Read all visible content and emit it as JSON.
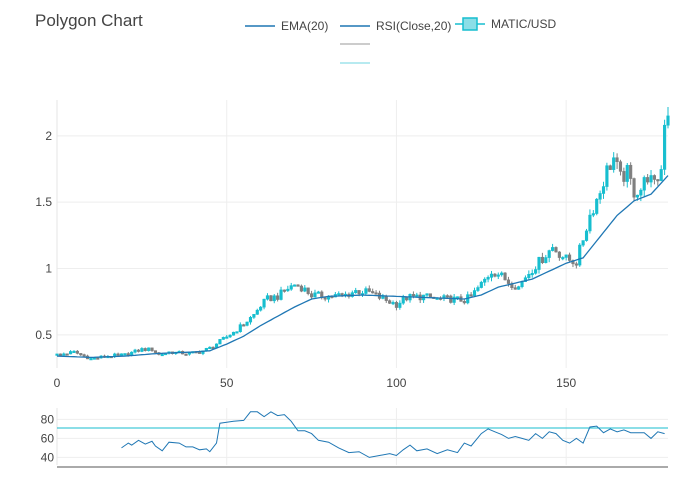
{
  "title": "Polygon Chart",
  "colors": {
    "ema": "#1f77b4",
    "rsi": "#1f77b4",
    "up": "#17becf",
    "down": "#7f7f7f",
    "grid": "#eeeeee",
    "rsi_level": "#17becf"
  },
  "legend": [
    {
      "label": "EMA(20)",
      "kind": "line",
      "color": "#1f77b4"
    },
    {
      "label": "RSI(Close,20)",
      "kind": "line",
      "color": "#1f77b4"
    },
    {
      "label": "MATIC/USD",
      "kind": "candle",
      "color": "#17becf"
    },
    {
      "label": "",
      "kind": "line",
      "color": "#7f7f7f"
    },
    {
      "label": "",
      "kind": "line",
      "color": "#17becf"
    }
  ],
  "chart_data": {
    "type": "candlestick",
    "xlabel": "",
    "ylabel": "",
    "xlim": [
      0,
      180
    ],
    "ylim": [
      0.25,
      2.27
    ],
    "x_ticks": [
      0,
      50,
      100,
      150
    ],
    "y_ticks": [
      0.5,
      1,
      1.5,
      2
    ],
    "grid": true,
    "legend_position": "top",
    "series": [
      {
        "name": "MATIC/USD",
        "kind": "ohlc"
      },
      {
        "name": "EMA(20)",
        "kind": "line"
      }
    ],
    "candle_anchors": [
      [
        0,
        0.35
      ],
      [
        5,
        0.37
      ],
      [
        8,
        0.34
      ],
      [
        10,
        0.32
      ],
      [
        15,
        0.34
      ],
      [
        20,
        0.35
      ],
      [
        25,
        0.39
      ],
      [
        28,
        0.39
      ],
      [
        30,
        0.35
      ],
      [
        33,
        0.37
      ],
      [
        38,
        0.36
      ],
      [
        42,
        0.37
      ],
      [
        45,
        0.4
      ],
      [
        48,
        0.45
      ],
      [
        52,
        0.52
      ],
      [
        55,
        0.58
      ],
      [
        58,
        0.65
      ],
      [
        60,
        0.72
      ],
      [
        62,
        0.77
      ],
      [
        65,
        0.79
      ],
      [
        68,
        0.85
      ],
      [
        70,
        0.88
      ],
      [
        72,
        0.86
      ],
      [
        75,
        0.8
      ],
      [
        80,
        0.79
      ],
      [
        85,
        0.8
      ],
      [
        88,
        0.83
      ],
      [
        92,
        0.82
      ],
      [
        96,
        0.77
      ],
      [
        100,
        0.73
      ],
      [
        103,
        0.78
      ],
      [
        108,
        0.79
      ],
      [
        112,
        0.77
      ],
      [
        116,
        0.77
      ],
      [
        120,
        0.76
      ],
      [
        122,
        0.79
      ],
      [
        125,
        0.88
      ],
      [
        128,
        0.98
      ],
      [
        130,
        0.96
      ],
      [
        133,
        0.9
      ],
      [
        136,
        0.86
      ],
      [
        138,
        0.94
      ],
      [
        142,
        1.05
      ],
      [
        146,
        1.16
      ],
      [
        150,
        1.07
      ],
      [
        153,
        1.05
      ],
      [
        157,
        1.4
      ],
      [
        160,
        1.58
      ],
      [
        162,
        1.74
      ],
      [
        164,
        1.83
      ],
      [
        166,
        1.68
      ],
      [
        168,
        1.72
      ],
      [
        170,
        1.58
      ],
      [
        172,
        1.6
      ],
      [
        174,
        1.7
      ],
      [
        176,
        1.62
      ],
      [
        178,
        1.75
      ],
      [
        179,
        2.1
      ],
      [
        180,
        2.16
      ]
    ],
    "ema_anchors": [
      [
        0,
        0.34
      ],
      [
        10,
        0.33
      ],
      [
        20,
        0.34
      ],
      [
        30,
        0.36
      ],
      [
        40,
        0.37
      ],
      [
        45,
        0.38
      ],
      [
        50,
        0.43
      ],
      [
        55,
        0.49
      ],
      [
        60,
        0.57
      ],
      [
        65,
        0.64
      ],
      [
        70,
        0.71
      ],
      [
        75,
        0.77
      ],
      [
        80,
        0.79
      ],
      [
        90,
        0.8
      ],
      [
        100,
        0.79
      ],
      [
        110,
        0.78
      ],
      [
        120,
        0.77
      ],
      [
        125,
        0.8
      ],
      [
        130,
        0.86
      ],
      [
        135,
        0.89
      ],
      [
        140,
        0.92
      ],
      [
        145,
        0.98
      ],
      [
        150,
        1.04
      ],
      [
        155,
        1.08
      ],
      [
        160,
        1.24
      ],
      [
        165,
        1.4
      ],
      [
        170,
        1.51
      ],
      [
        175,
        1.56
      ],
      [
        180,
        1.7
      ]
    ],
    "rsi_panel": {
      "name": "RSI(Close,20)",
      "ylim": [
        32,
        92
      ],
      "y_ticks": [
        40,
        60,
        80
      ],
      "level_line": 71,
      "anchors": [
        [
          19,
          50
        ],
        [
          21,
          55
        ],
        [
          22,
          53
        ],
        [
          24,
          58
        ],
        [
          26,
          54
        ],
        [
          28,
          57
        ],
        [
          29,
          52
        ],
        [
          31,
          47
        ],
        [
          33,
          56
        ],
        [
          36,
          55
        ],
        [
          38,
          51
        ],
        [
          40,
          51
        ],
        [
          42,
          48
        ],
        [
          44,
          49
        ],
        [
          45,
          46
        ],
        [
          47,
          55
        ],
        [
          48,
          76
        ],
        [
          50,
          77
        ],
        [
          52,
          78
        ],
        [
          55,
          79
        ],
        [
          57,
          88
        ],
        [
          59,
          88
        ],
        [
          61,
          83
        ],
        [
          63,
          88
        ],
        [
          65,
          84
        ],
        [
          67,
          85
        ],
        [
          69,
          78
        ],
        [
          71,
          68
        ],
        [
          73,
          68
        ],
        [
          75,
          65
        ],
        [
          77,
          58
        ],
        [
          80,
          56
        ],
        [
          83,
          50
        ],
        [
          86,
          45
        ],
        [
          89,
          46
        ],
        [
          92,
          40
        ],
        [
          95,
          42
        ],
        [
          98,
          44
        ],
        [
          100,
          42
        ],
        [
          102,
          48
        ],
        [
          104,
          53
        ],
        [
          106,
          47
        ],
        [
          109,
          49
        ],
        [
          112,
          44
        ],
        [
          115,
          48
        ],
        [
          118,
          45
        ],
        [
          120,
          55
        ],
        [
          122,
          52
        ],
        [
          125,
          65
        ],
        [
          127,
          70
        ],
        [
          129,
          67
        ],
        [
          131,
          64
        ],
        [
          133,
          60
        ],
        [
          135,
          62
        ],
        [
          137,
          60
        ],
        [
          139,
          58
        ],
        [
          141,
          65
        ],
        [
          143,
          60
        ],
        [
          145,
          67
        ],
        [
          147,
          65
        ],
        [
          149,
          58
        ],
        [
          151,
          55
        ],
        [
          153,
          60
        ],
        [
          155,
          55
        ],
        [
          157,
          72
        ],
        [
          159,
          73
        ],
        [
          161,
          66
        ],
        [
          163,
          70
        ],
        [
          165,
          67
        ],
        [
          167,
          69
        ],
        [
          169,
          66
        ],
        [
          171,
          66
        ],
        [
          173,
          66
        ],
        [
          175,
          60
        ],
        [
          177,
          67
        ],
        [
          179,
          65
        ]
      ]
    }
  }
}
